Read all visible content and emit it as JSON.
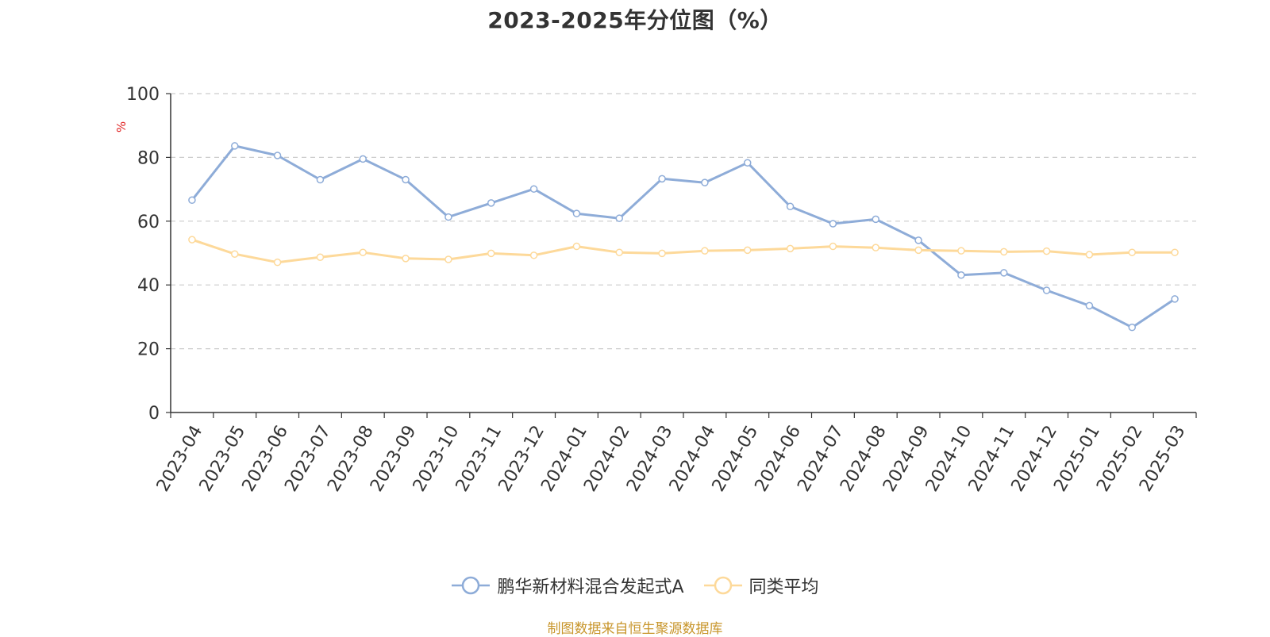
{
  "chart_data": {
    "type": "line",
    "title": "2023-2025年分位图（%）",
    "ylabel": "%",
    "ylim": [
      0,
      100
    ],
    "yticks": [
      0,
      20,
      40,
      60,
      80,
      100
    ],
    "grid": true,
    "legend_position": "bottom",
    "categories": [
      "2023-04",
      "2023-05",
      "2023-06",
      "2023-07",
      "2023-08",
      "2023-09",
      "2023-10",
      "2023-11",
      "2023-12",
      "2024-01",
      "2024-02",
      "2024-03",
      "2024-04",
      "2024-05",
      "2024-06",
      "2024-07",
      "2024-08",
      "2024-09",
      "2024-10",
      "2024-11",
      "2024-12",
      "2025-01",
      "2025-02",
      "2025-03"
    ],
    "series": [
      {
        "name": "鹏华新材料混合发起式A",
        "color": "#8eacd8",
        "values": [
          66.6,
          83.6,
          80.6,
          73.0,
          79.5,
          73.0,
          61.3,
          65.7,
          70.1,
          62.4,
          60.9,
          73.3,
          72.1,
          78.3,
          64.6,
          59.2,
          60.6,
          54.0,
          43.1,
          43.8,
          38.3,
          33.5,
          26.7,
          35.6
        ]
      },
      {
        "name": "同类平均",
        "color": "#fdd99a",
        "values": [
          54.2,
          49.7,
          47.1,
          48.7,
          50.2,
          48.3,
          48.0,
          49.9,
          49.3,
          52.1,
          50.2,
          49.9,
          50.7,
          50.9,
          51.4,
          52.1,
          51.7,
          50.9,
          50.7,
          50.4,
          50.6,
          49.5,
          50.2,
          50.2
        ]
      }
    ]
  },
  "footer": {
    "source": "制图数据来自恒生聚源数据库"
  }
}
